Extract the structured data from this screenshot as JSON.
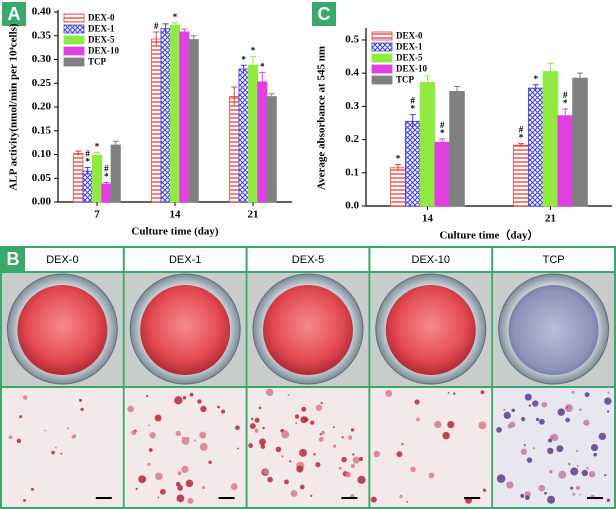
{
  "chart_data": [
    {
      "type": "bar",
      "panel_label": "A",
      "ylabel": "ALP activity(nmol/min per 10⁴cells)",
      "xlabel": "Culture time (day)",
      "categories": [
        "7",
        "14",
        "21"
      ],
      "ylim": [
        0,
        0.4
      ],
      "yticks": [
        {
          "value": 0,
          "label": "0.00"
        },
        {
          "value": 0.05,
          "label": "0.05"
        },
        {
          "value": 0.1,
          "label": "0.10"
        },
        {
          "value": 0.15,
          "label": "0.15"
        },
        {
          "value": 0.2,
          "label": "0.20"
        },
        {
          "value": 0.25,
          "label": "0.25"
        },
        {
          "value": 0.3,
          "label": "0.30"
        },
        {
          "value": 0.35,
          "label": "0.35"
        },
        {
          "value": 0.4,
          "label": "0.40"
        }
      ],
      "legend": "upper left",
      "series": [
        {
          "name": "DEX-0",
          "color": "#e8403c",
          "pattern": "hlines",
          "values": [
            0.102,
            0.343,
            0.222
          ],
          "errors": [
            0.005,
            0.015,
            0.02
          ],
          "signif": [
            null,
            [
              "#"
            ],
            null
          ]
        },
        {
          "name": "DEX-1",
          "color": "#3c3cd8",
          "pattern": "crosshatch",
          "values": [
            0.065,
            0.365,
            0.28
          ],
          "errors": [
            0.008,
            0.01,
            0.008
          ],
          "signif": [
            [
              "#",
              "*"
            ],
            null,
            [
              "*"
            ]
          ]
        },
        {
          "name": "DEX-5",
          "color": "#90ea40",
          "pattern": "solid",
          "values": [
            0.098,
            0.372,
            0.288
          ],
          "errors": [
            0.006,
            0.005,
            0.018
          ],
          "signif": [
            [
              "*"
            ],
            [
              "*"
            ],
            [
              "*"
            ]
          ]
        },
        {
          "name": "DEX-10",
          "color": "#e040e0",
          "pattern": "solid",
          "values": [
            0.038,
            0.358,
            0.253
          ],
          "errors": [
            0.003,
            0.006,
            0.02
          ],
          "signif": [
            [
              "#",
              "*"
            ],
            null,
            [
              "*"
            ]
          ]
        },
        {
          "name": "TCP",
          "color": "#808080",
          "pattern": "solid",
          "values": [
            0.12,
            0.342,
            0.222
          ],
          "errors": [
            0.008,
            0.008,
            0.006
          ],
          "signif": [
            null,
            null,
            null
          ]
        }
      ]
    },
    {
      "type": "bar",
      "panel_label": "C",
      "ylabel": "Average absorbance at 545 nm",
      "xlabel": "Culture time（day）",
      "categories": [
        "14",
        "21"
      ],
      "ylim": [
        0,
        0.53
      ],
      "yticks": [
        {
          "value": 0,
          "label": "0.0"
        },
        0.1,
        0.2,
        0.3,
        0.4,
        0.5
      ],
      "legend": "upper left",
      "series": [
        {
          "name": "DEX-0",
          "color": "#e8403c",
          "pattern": "hlines",
          "values": [
            0.115,
            0.183
          ],
          "errors": [
            0.01,
            0.005
          ],
          "signif": [
            [
              "*"
            ],
            [
              "#",
              "*"
            ]
          ]
        },
        {
          "name": "DEX-1",
          "color": "#3c3cd8",
          "pattern": "crosshatch",
          "values": [
            0.255,
            0.355
          ],
          "errors": [
            0.02,
            0.01
          ],
          "signif": [
            [
              "#",
              "*"
            ],
            [
              "*"
            ]
          ]
        },
        {
          "name": "DEX-5",
          "color": "#90ea40",
          "pattern": "solid",
          "values": [
            0.372,
            0.405
          ],
          "errors": [
            0.02,
            0.025
          ],
          "signif": [
            null,
            null
          ]
        },
        {
          "name": "DEX-10",
          "color": "#e040e0",
          "pattern": "solid",
          "values": [
            0.192,
            0.272
          ],
          "errors": [
            0.01,
            0.02
          ],
          "signif": [
            [
              "#",
              "*"
            ],
            [
              "#",
              "*"
            ]
          ]
        },
        {
          "name": "TCP",
          "color": "#808080",
          "pattern": "solid",
          "values": [
            0.345,
            0.385
          ],
          "errors": [
            0.015,
            0.015
          ],
          "signif": [
            null,
            null
          ]
        }
      ]
    }
  ],
  "figure_b": {
    "label": "B",
    "columns": [
      "DEX-0",
      "DEX-1",
      "DEX-5",
      "DEX-10",
      "TCP"
    ]
  }
}
